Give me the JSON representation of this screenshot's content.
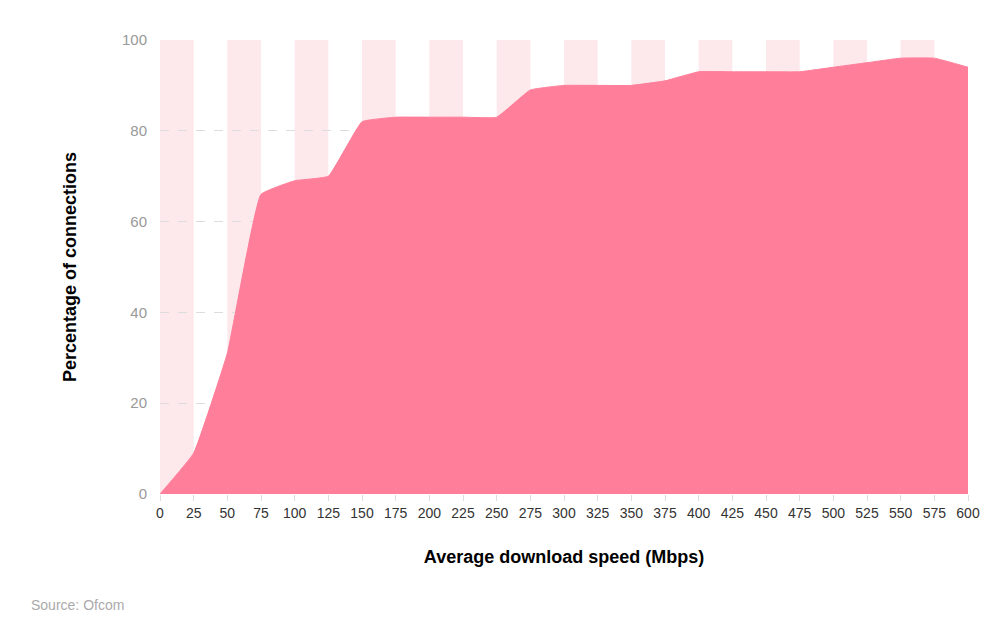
{
  "chart_data": {
    "type": "area",
    "x_label": "Average download speed (Mbps)",
    "y_label": "Percentage of connections",
    "source": "Source: Ofcom",
    "x": [
      0,
      25,
      50,
      75,
      100,
      125,
      150,
      175,
      200,
      225,
      250,
      275,
      300,
      325,
      350,
      375,
      400,
      425,
      450,
      475,
      500,
      525,
      550,
      575,
      600
    ],
    "values": [
      0,
      9,
      31,
      66,
      69,
      70,
      82,
      83,
      83,
      83,
      83,
      89,
      90,
      90,
      90,
      91,
      93,
      93,
      93,
      93,
      94,
      95,
      96,
      96,
      94
    ],
    "color": "#ff7e9a",
    "xlim": [
      0,
      600
    ],
    "xticks": [
      0,
      25,
      50,
      75,
      100,
      125,
      150,
      175,
      200,
      225,
      250,
      275,
      300,
      325,
      350,
      375,
      400,
      425,
      450,
      475,
      500,
      525,
      550,
      575,
      600
    ],
    "ylim": [
      0,
      100
    ],
    "yticks": [
      0,
      20,
      40,
      60,
      80,
      100
    ],
    "grid": true
  }
}
